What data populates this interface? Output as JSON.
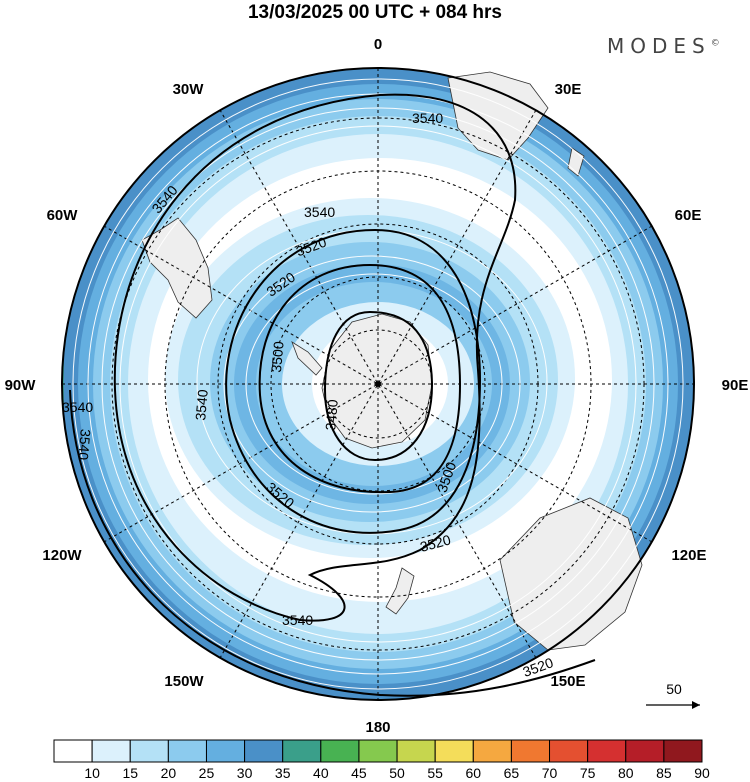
{
  "title": "13/03/2025  00 UTC  + 084 hrs",
  "brand": "MODES",
  "brand_mark": "©",
  "longitude_labels": {
    "lon_0": "0",
    "lon_30e": "30E",
    "lon_60e": "60E",
    "lon_90e": "90E",
    "lon_120e": "120E",
    "lon_150e": "150E",
    "lon_180": "180",
    "lon_150w": "150W",
    "lon_120w": "120W",
    "lon_90w": "90W",
    "lon_60w": "60W",
    "lon_30w": "30W"
  },
  "contour_labels": [
    "3540",
    "3540",
    "3540",
    "3520",
    "3520",
    "3500",
    "3480",
    "3540",
    "3540",
    "3520",
    "3520",
    "3500",
    "3540",
    "3540",
    "3520"
  ],
  "wind_reference": {
    "value": "50"
  },
  "colorbar": {
    "labels": [
      "10",
      "15",
      "20",
      "25",
      "30",
      "35",
      "40",
      "45",
      "50",
      "55",
      "60",
      "65",
      "70",
      "75",
      "80",
      "85",
      "90"
    ],
    "colors": [
      "#ffffff",
      "#dcf1fc",
      "#b4e1f6",
      "#8ccbee",
      "#64afe0",
      "#4a90c8",
      "#3a9f8a",
      "#48b252",
      "#85c94e",
      "#c6d64e",
      "#f4dd5a",
      "#f5a840",
      "#f07830",
      "#e45030",
      "#d53030",
      "#b51e28",
      "#90181e"
    ]
  }
}
